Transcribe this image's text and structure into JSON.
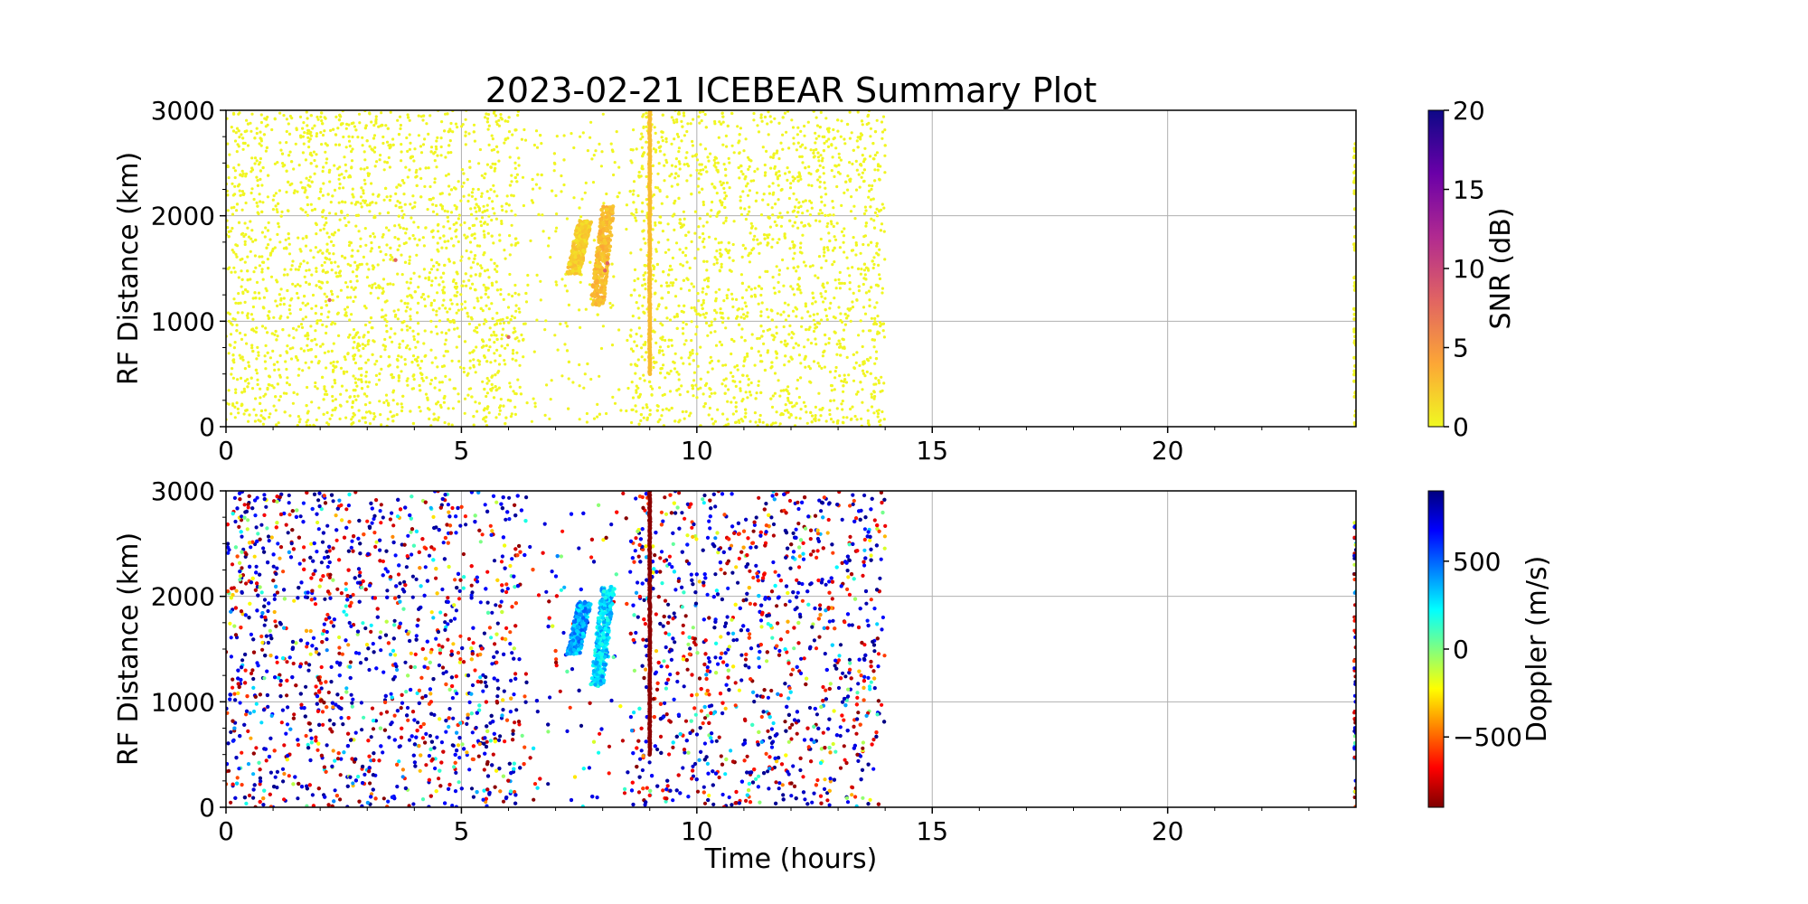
{
  "chart_data": [
    {
      "type": "scatter",
      "title": "2023-02-21 ICEBEAR Summary Plot",
      "xlabel": "",
      "ylabel": "RF Distance (km)",
      "xlim": [
        0,
        24
      ],
      "ylim": [
        0,
        3000
      ],
      "xticks": [
        0,
        5,
        10,
        15,
        20
      ],
      "yticks": [
        0,
        1000,
        2000,
        3000
      ],
      "grid": true,
      "colorbar": {
        "label": "SNR (dB)",
        "range": [
          0,
          20
        ],
        "ticks": [
          0,
          5,
          10,
          15,
          20
        ],
        "colormap": "plasma_r",
        "colors": [
          "#f0f921",
          "#fca636",
          "#e16462",
          "#b12a90",
          "#6a00a8",
          "#0d0887"
        ]
      },
      "series": [
        {
          "kind": "background-noise",
          "x_range": [
            0,
            14
          ],
          "y_range": [
            0,
            3000
          ],
          "value": 0.3
        },
        {
          "kind": "streak",
          "x": 7.5,
          "y_range": [
            1450,
            1950
          ],
          "value": 2
        },
        {
          "kind": "streak",
          "x": 8.0,
          "y_range": [
            1150,
            2100
          ],
          "value": 3
        },
        {
          "kind": "vertical-line",
          "x": 9.0,
          "y_range": [
            500,
            3000
          ],
          "value": 3
        },
        {
          "kind": "isolated",
          "points": [
            [
              6.0,
              850
            ],
            [
              8.05,
              1480
            ],
            [
              8.1,
              1550
            ],
            [
              3.6,
              1580
            ],
            [
              2.2,
              1200
            ]
          ],
          "value": 8
        },
        {
          "kind": "edge",
          "x": 24.0,
          "y_range": [
            0,
            2700
          ],
          "value": 0.5
        }
      ]
    },
    {
      "type": "scatter",
      "title": "",
      "xlabel": "Time (hours)",
      "ylabel": "RF Distance (km)",
      "xlim": [
        0,
        24
      ],
      "ylim": [
        0,
        3000
      ],
      "xticks": [
        0,
        5,
        10,
        15,
        20
      ],
      "yticks": [
        0,
        1000,
        2000,
        3000
      ],
      "grid": true,
      "colorbar": {
        "label": "Doppler (m/s)",
        "range": [
          -900,
          900
        ],
        "ticks": [
          -500,
          0,
          500
        ],
        "tick_labels": [
          "−500",
          "0",
          "500"
        ],
        "colormap": "jet_r",
        "colors": [
          "#7f0000",
          "#ff0000",
          "#ff8000",
          "#ffff00",
          "#80ff80",
          "#00ffff",
          "#0080ff",
          "#0000ff",
          "#00007f"
        ]
      },
      "series": [
        {
          "kind": "background-noise",
          "x_range": [
            0,
            14
          ],
          "y_range": [
            0,
            3000
          ],
          "value": "mixed"
        },
        {
          "kind": "streak",
          "x": 7.5,
          "y_range": [
            1450,
            1950
          ],
          "value": 380
        },
        {
          "kind": "streak",
          "x": 8.0,
          "y_range": [
            1150,
            2100
          ],
          "value": 300
        },
        {
          "kind": "vertical-line",
          "x": 9.0,
          "y_range": [
            500,
            3000
          ],
          "value": -880
        },
        {
          "kind": "edge",
          "x": 24.0,
          "y_range": [
            0,
            2700
          ],
          "value": "mixed"
        }
      ]
    }
  ]
}
